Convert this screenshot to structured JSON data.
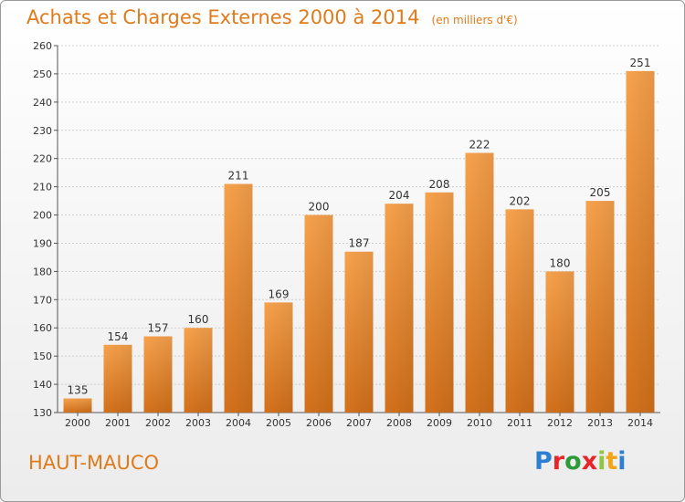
{
  "header": {
    "title": "Achats et Charges Externes 2000 à 2014",
    "unit": "(en milliers d'€)"
  },
  "footer": {
    "commune": "HAUT-MAUCO",
    "logo": {
      "letters": [
        "P",
        "r",
        "o",
        "x",
        "i",
        "t",
        "i"
      ],
      "colors": [
        "#2e7fd1",
        "#e8262a",
        "#2e9a3a",
        "#e8262a",
        "#8ec63f",
        "#f2a516",
        "#2e7fd1"
      ]
    }
  },
  "chart_data": {
    "type": "bar",
    "title": "Achats et Charges Externes 2000 à 2014",
    "subtitle": "(en milliers d'€)",
    "xlabel": "",
    "ylabel": "",
    "categories": [
      "2000",
      "2001",
      "2002",
      "2003",
      "2004",
      "2005",
      "2006",
      "2007",
      "2008",
      "2009",
      "2010",
      "2011",
      "2012",
      "2013",
      "2014"
    ],
    "values": [
      135,
      154,
      157,
      160,
      211,
      169,
      200,
      187,
      204,
      208,
      222,
      202,
      180,
      205,
      251
    ],
    "ylim": [
      130,
      260
    ],
    "yticks": [
      130,
      140,
      150,
      160,
      170,
      180,
      190,
      200,
      210,
      220,
      230,
      240,
      250,
      260
    ],
    "grid": true,
    "bar_color": "#f0922b"
  }
}
